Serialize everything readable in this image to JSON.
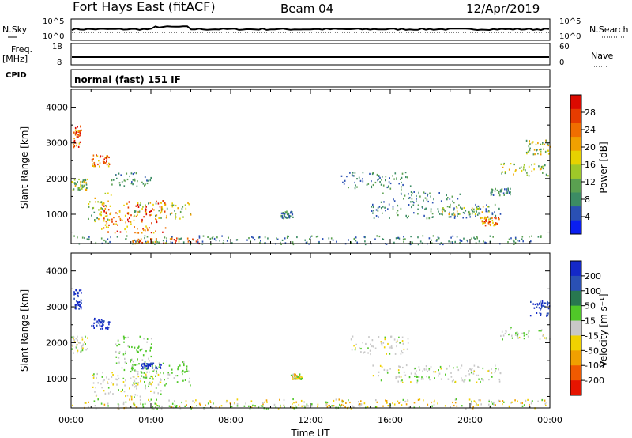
{
  "header": {
    "station": "Fort Hays East (fitACF)",
    "beam": "Beam 04",
    "date": "12/Apr/2019"
  },
  "summary": {
    "nsky_label": "N.Sky",
    "nsky_ticks": [
      "10^5",
      "10^0"
    ],
    "nsearch_label": "N.Search",
    "nsearch_ticks": [
      "10^5",
      "10^0"
    ],
    "freq_label": "Freq.",
    "freq_unit": "[MHz]",
    "freq_ticks": [
      "18",
      "8"
    ],
    "nave_label": "Nave",
    "nave_ticks": [
      "60",
      "0"
    ],
    "cpid_label": "CPID",
    "cpid_value": "normal (fast) 151 IF"
  },
  "chart_data": [
    {
      "type": "heatmap",
      "name": "power",
      "ylabel": "Slant Range [km]",
      "yticks": [
        1000,
        2000,
        3000,
        4000
      ],
      "ylim": [
        180,
        4500
      ],
      "xlim": [
        0,
        24
      ],
      "colorbar": {
        "label": "Power [dB]",
        "ticks": [
          "28",
          "24",
          "20",
          "16",
          "12",
          "8",
          "4"
        ],
        "colors": [
          "#0a1ef0",
          "#2a50b4",
          "#3c8c64",
          "#5aa050",
          "#9ec828",
          "#e6d200",
          "#f0a000",
          "#f06e00",
          "#e63c00",
          "#dc0a00"
        ]
      },
      "regions": [
        {
          "t0": 0.0,
          "t1": 0.8,
          "r0": 1700,
          "r1": 2000,
          "level": "mid"
        },
        {
          "t0": 0.1,
          "t1": 0.5,
          "r0": 2900,
          "r1": 3500,
          "level": "high"
        },
        {
          "t0": 1.0,
          "t1": 1.9,
          "r0": 2350,
          "r1": 2700,
          "level": "high"
        },
        {
          "t0": 0.8,
          "t1": 2.0,
          "r0": 800,
          "r1": 1700,
          "level": "mid"
        },
        {
          "t0": 1.5,
          "t1": 4.8,
          "r0": 500,
          "r1": 1400,
          "level": "high"
        },
        {
          "t0": 3.0,
          "t1": 6.0,
          "r0": 900,
          "r1": 1350,
          "level": "mid"
        },
        {
          "t0": 2.0,
          "t1": 4.0,
          "r0": 1800,
          "r1": 2200,
          "level": "low"
        },
        {
          "t0": 0.0,
          "t1": 24.0,
          "r0": 180,
          "r1": 420,
          "level": "low"
        },
        {
          "t0": 3.0,
          "t1": 6.5,
          "r0": 200,
          "r1": 350,
          "level": "high"
        },
        {
          "t0": 10.5,
          "t1": 11.1,
          "r0": 900,
          "r1": 1100,
          "level": "low"
        },
        {
          "t0": 13.5,
          "t1": 17.0,
          "r0": 1700,
          "r1": 2200,
          "level": "low"
        },
        {
          "t0": 15.5,
          "t1": 19.5,
          "r0": 1350,
          "r1": 1650,
          "level": "low"
        },
        {
          "t0": 15.0,
          "t1": 21.5,
          "r0": 900,
          "r1": 1300,
          "level": "low"
        },
        {
          "t0": 18.5,
          "t1": 21.0,
          "r0": 1000,
          "r1": 1250,
          "level": "mid"
        },
        {
          "t0": 20.5,
          "t1": 21.5,
          "r0": 700,
          "r1": 950,
          "level": "high"
        },
        {
          "t0": 21.5,
          "t1": 24.0,
          "r0": 2100,
          "r1": 2450,
          "level": "mid"
        },
        {
          "t0": 22.8,
          "t1": 24.0,
          "r0": 2700,
          "r1": 3100,
          "level": "mid"
        },
        {
          "t0": 21.0,
          "t1": 22.0,
          "r0": 1550,
          "r1": 1750,
          "level": "low"
        }
      ]
    },
    {
      "type": "heatmap",
      "name": "velocity",
      "ylabel": "Slant Range [km]",
      "yticks": [
        1000,
        2000,
        3000,
        4000
      ],
      "ylim": [
        180,
        4500
      ],
      "xlim": [
        0,
        24
      ],
      "xlabel": "Time UT",
      "xticks": [
        "00:00",
        "04:00",
        "08:00",
        "12:00",
        "16:00",
        "20:00",
        "00:00"
      ],
      "colorbar": {
        "label": "Velocity [m s⁻¹]",
        "ticks": [
          "200",
          "100",
          "50",
          "15",
          "-15",
          "-50",
          "-100",
          "-200"
        ],
        "colors": [
          "#1428c8",
          "#2a50b4",
          "#287850",
          "#50c828",
          "#c8c8c8",
          "#f0d200",
          "#f0a000",
          "#f05a00",
          "#e61400"
        ]
      },
      "regions": [
        {
          "t0": 0.0,
          "t1": 0.8,
          "r0": 1700,
          "r1": 2200,
          "level": "gray"
        },
        {
          "t0": 0.1,
          "t1": 0.5,
          "r0": 2950,
          "r1": 3500,
          "level": "blue"
        },
        {
          "t0": 1.0,
          "t1": 1.9,
          "r0": 2400,
          "r1": 2700,
          "level": "blue"
        },
        {
          "t0": 2.2,
          "t1": 4.0,
          "r0": 1200,
          "r1": 2200,
          "level": "green"
        },
        {
          "t0": 3.0,
          "t1": 6.0,
          "r0": 800,
          "r1": 1500,
          "level": "green"
        },
        {
          "t0": 1.0,
          "t1": 4.5,
          "r0": 500,
          "r1": 1200,
          "level": "gray"
        },
        {
          "t0": 3.5,
          "t1": 4.5,
          "r0": 1300,
          "r1": 1450,
          "level": "blue"
        },
        {
          "t0": 0.0,
          "t1": 24.0,
          "r0": 180,
          "r1": 450,
          "level": "yellow"
        },
        {
          "t0": 4.0,
          "t1": 12.0,
          "r0": 180,
          "r1": 280,
          "level": "green"
        },
        {
          "t0": 11.0,
          "t1": 11.6,
          "r0": 1000,
          "r1": 1150,
          "level": "yellow"
        },
        {
          "t0": 15.0,
          "t1": 21.5,
          "r0": 900,
          "r1": 1400,
          "level": "gray"
        },
        {
          "t0": 14.0,
          "t1": 17.0,
          "r0": 1700,
          "r1": 2200,
          "level": "gray"
        },
        {
          "t0": 21.5,
          "t1": 24.0,
          "r0": 2100,
          "r1": 2450,
          "level": "gray"
        },
        {
          "t0": 23.0,
          "t1": 24.0,
          "r0": 2750,
          "r1": 3200,
          "level": "blue"
        }
      ]
    }
  ]
}
